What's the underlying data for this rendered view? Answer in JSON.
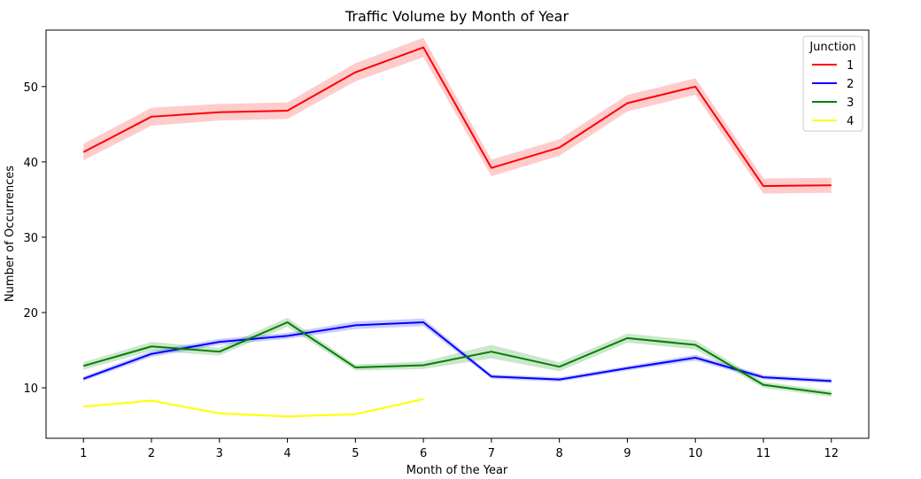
{
  "chart_data": {
    "type": "line",
    "title": "Traffic Volume by Month of Year",
    "xlabel": "Month of the Year",
    "ylabel": "Number of Occurrences",
    "x": [
      1,
      2,
      3,
      4,
      5,
      6,
      7,
      8,
      9,
      10,
      11,
      12
    ],
    "x_tick_labels": [
      "1",
      "2",
      "3",
      "4",
      "5",
      "6",
      "7",
      "8",
      "9",
      "10",
      "11",
      "12"
    ],
    "xlim": [
      0.45,
      12.55
    ],
    "ylim": [
      3.3,
      57.5
    ],
    "y_ticks": [
      10,
      20,
      30,
      40,
      50
    ],
    "grid": false,
    "legend": {
      "title": "Junction",
      "placement": "top-right"
    },
    "series": [
      {
        "name": "1",
        "color": "#ff0000",
        "band_color": "#ff0000",
        "values": [
          41.3,
          46.0,
          46.6,
          46.8,
          51.9,
          55.2,
          39.2,
          41.9,
          47.8,
          50.0,
          36.8,
          36.9
        ],
        "ci_half_width": [
          1.1,
          1.2,
          1.1,
          1.1,
          1.2,
          1.3,
          1.1,
          1.1,
          1.1,
          1.1,
          1.0,
          1.0
        ]
      },
      {
        "name": "2",
        "color": "#0000ff",
        "band_color": "#0000ff",
        "values": [
          11.2,
          14.5,
          16.1,
          16.9,
          18.3,
          18.7,
          11.5,
          11.1,
          12.6,
          14.0,
          11.4,
          10.9
        ],
        "ci_half_width": [
          0.3,
          0.4,
          0.4,
          0.4,
          0.5,
          0.5,
          0.3,
          0.3,
          0.3,
          0.4,
          0.3,
          0.3
        ]
      },
      {
        "name": "3",
        "color": "#008000",
        "band_color": "#008000",
        "values": [
          12.9,
          15.5,
          14.8,
          18.7,
          12.7,
          13.0,
          14.8,
          12.8,
          16.6,
          15.7,
          10.4,
          9.2
        ],
        "ci_half_width": [
          0.5,
          0.6,
          0.5,
          0.6,
          0.4,
          0.5,
          0.9,
          0.6,
          0.6,
          0.6,
          0.4,
          0.4
        ]
      },
      {
        "name": "4",
        "color": "#ffff00",
        "band_color": "#ffff00",
        "values": [
          7.5,
          8.3,
          6.6,
          6.2,
          6.5,
          8.5,
          null,
          null,
          null,
          null,
          null,
          null
        ],
        "ci_half_width": [
          0.15,
          0.15,
          0.15,
          0.15,
          0.15,
          0.15,
          null,
          null,
          null,
          null,
          null,
          null
        ]
      }
    ]
  }
}
